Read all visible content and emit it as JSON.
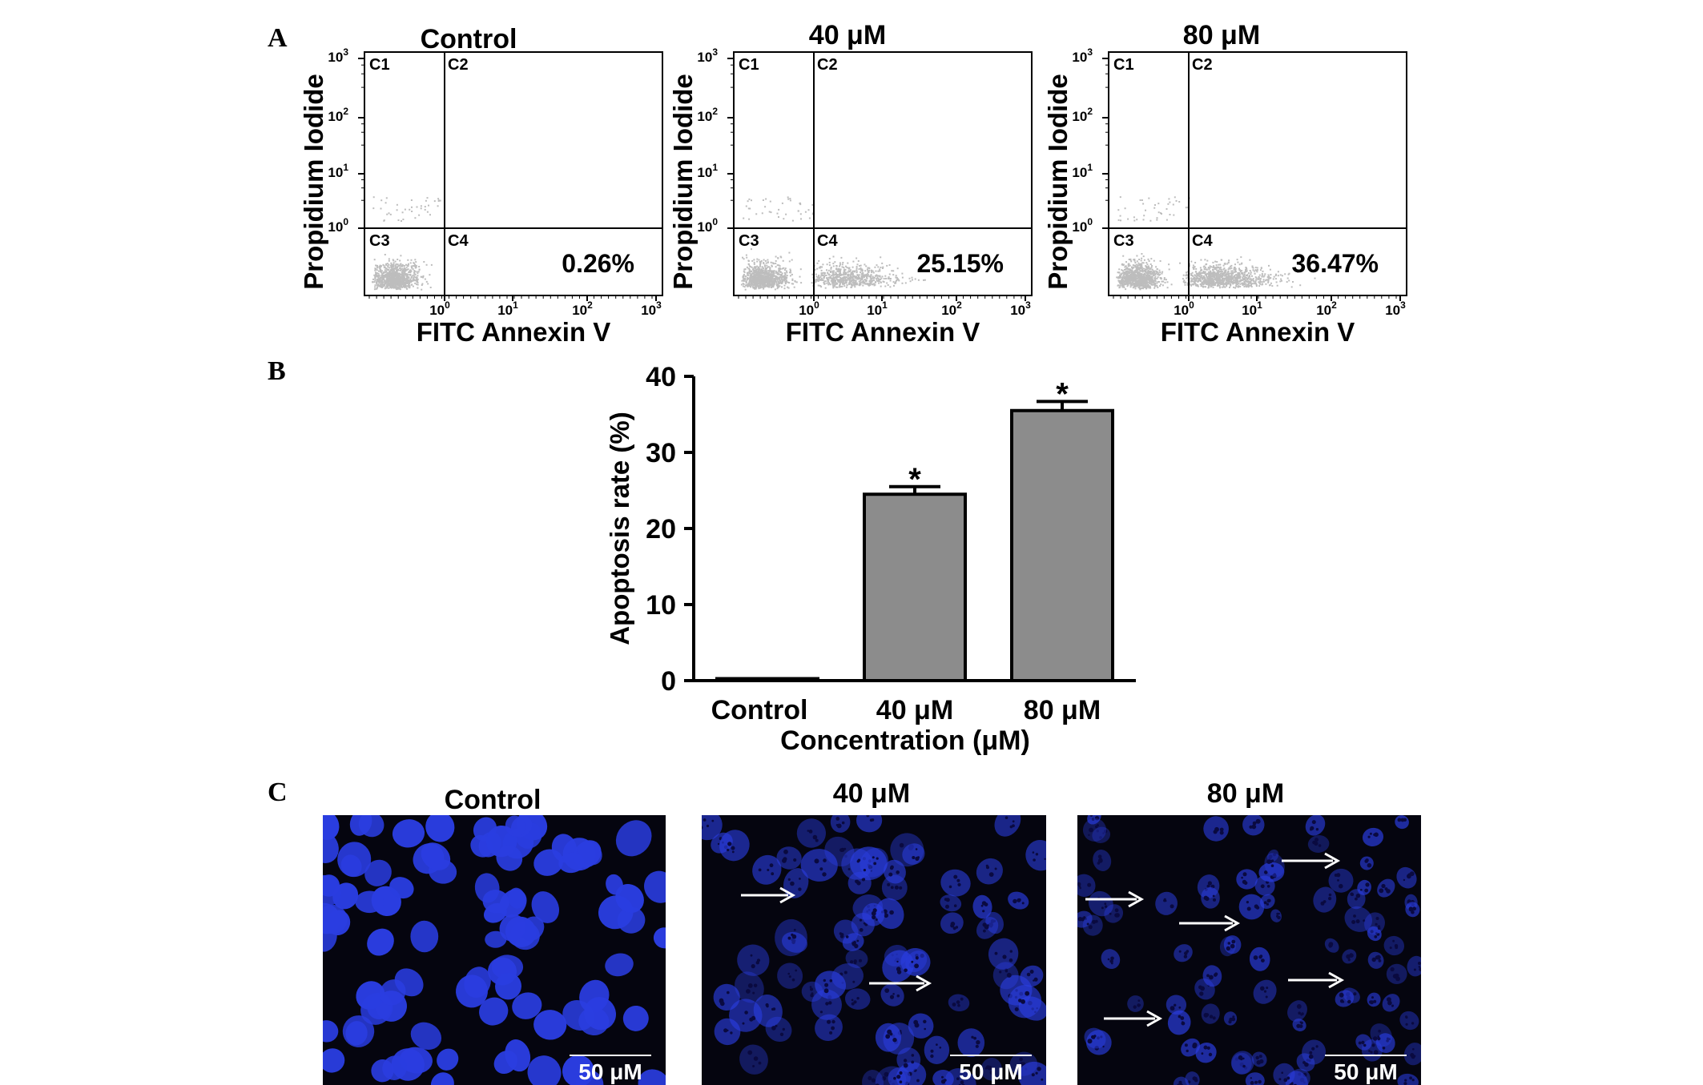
{
  "figure": {
    "panel_labels": [
      "A",
      "B",
      "C"
    ]
  },
  "flow_panels": [
    {
      "title": "Control",
      "ylabel": "Propidium Iodide",
      "xlabel": "FITC Annexin V",
      "quadrants": [
        "C1",
        "C2",
        "C3",
        "C4"
      ],
      "c4_percent": "0.26%",
      "x_ticks": [
        {
          "base": "10",
          "exp": "0"
        },
        {
          "base": "10",
          "exp": "1"
        },
        {
          "base": "10",
          "exp": "2"
        },
        {
          "base": "10",
          "exp": "3"
        }
      ],
      "y_ticks": [
        {
          "base": "10",
          "exp": "0"
        },
        {
          "base": "10",
          "exp": "1"
        },
        {
          "base": "10",
          "exp": "2"
        },
        {
          "base": "10",
          "exp": "3"
        }
      ],
      "spread": 0
    },
    {
      "title": "40 μM",
      "ylabel": "Propidium Iodide",
      "xlabel": "FITC Annexin V",
      "quadrants": [
        "C1",
        "C2",
        "C3",
        "C4"
      ],
      "c4_percent": "25.15%",
      "x_ticks": [
        {
          "base": "10",
          "exp": "0"
        },
        {
          "base": "10",
          "exp": "1"
        },
        {
          "base": "10",
          "exp": "2"
        },
        {
          "base": "10",
          "exp": "3"
        }
      ],
      "y_ticks": [
        {
          "base": "10",
          "exp": "0"
        },
        {
          "base": "10",
          "exp": "1"
        },
        {
          "base": "10",
          "exp": "2"
        },
        {
          "base": "10",
          "exp": "3"
        }
      ],
      "spread": 0.25
    },
    {
      "title": "80 μM",
      "ylabel": "Propidium Iodide",
      "xlabel": "FITC Annexin V",
      "quadrants": [
        "C1",
        "C2",
        "C3",
        "C4"
      ],
      "c4_percent": "36.47%",
      "x_ticks": [
        {
          "base": "10",
          "exp": "0"
        },
        {
          "base": "10",
          "exp": "1"
        },
        {
          "base": "10",
          "exp": "2"
        },
        {
          "base": "10",
          "exp": "3"
        }
      ],
      "y_ticks": [
        {
          "base": "10",
          "exp": "0"
        },
        {
          "base": "10",
          "exp": "1"
        },
        {
          "base": "10",
          "exp": "2"
        },
        {
          "base": "10",
          "exp": "3"
        }
      ],
      "spread": 0.36
    }
  ],
  "chart_data": {
    "type": "bar",
    "categories": [
      "Control",
      "40 μM",
      "80 μM"
    ],
    "values": [
      0.26,
      24.5,
      35.5
    ],
    "errors": [
      0,
      1.0,
      1.2
    ],
    "significance": [
      "",
      "*",
      "*"
    ],
    "xlabel": "Concentration (μM)",
    "ylabel": "Apoptosis rate (%)",
    "ylim": [
      0,
      40
    ],
    "yticks": [
      0,
      10,
      20,
      30,
      40
    ],
    "bar_color": "#8c8c8c",
    "grid": false
  },
  "micrographs": [
    {
      "title": "Control",
      "scale_label": "50 μM",
      "arrows": 0,
      "granular": false
    },
    {
      "title": "40 μM",
      "scale_label": "50 μM",
      "arrows": 2,
      "granular": true
    },
    {
      "title": "80 μM",
      "scale_label": "50 μM",
      "arrows": 5,
      "granular": true
    }
  ],
  "colors": {
    "nuclei": "#2a3de0",
    "micrograph_bg": "#05050f",
    "dots": "#bdbdbd"
  }
}
